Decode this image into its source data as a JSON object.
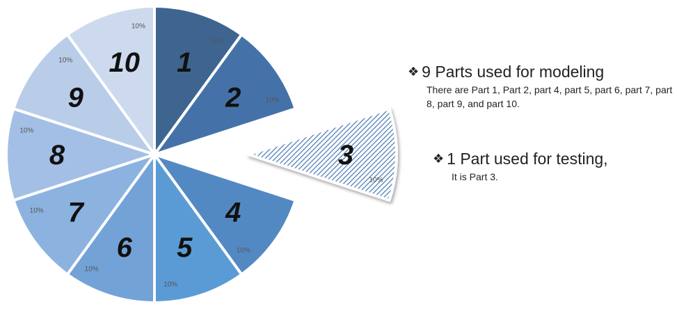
{
  "chart_data": {
    "type": "pie",
    "title": "",
    "slices": [
      {
        "label": "1",
        "value": 10,
        "value_label": "10%",
        "color": "#3e6590",
        "exploded": false
      },
      {
        "label": "2",
        "value": 10,
        "value_label": "10%",
        "color": "#4472a8",
        "exploded": false
      },
      {
        "label": "3",
        "value": 10,
        "value_label": "10%",
        "color": "#4f7fb8",
        "exploded": true,
        "pattern": "diagonal-hatch"
      },
      {
        "label": "4",
        "value": 10,
        "value_label": "10%",
        "color": "#5389c3",
        "exploded": false
      },
      {
        "label": "5",
        "value": 10,
        "value_label": "10%",
        "color": "#5b9bd5",
        "exploded": false
      },
      {
        "label": "6",
        "value": 10,
        "value_label": "10%",
        "color": "#73a2d7",
        "exploded": false
      },
      {
        "label": "7",
        "value": 10,
        "value_label": "10%",
        "color": "#8cb2e0",
        "exploded": false
      },
      {
        "label": "8",
        "value": 10,
        "value_label": "10%",
        "color": "#a3bfe5",
        "exploded": false
      },
      {
        "label": "9",
        "value": 10,
        "value_label": "10%",
        "color": "#b9cde9",
        "exploded": false
      },
      {
        "label": "10",
        "value": 10,
        "value_label": "10%",
        "color": "#cddaee",
        "exploded": false
      }
    ]
  },
  "text": {
    "modeling_glyph": "❖",
    "modeling_heading": "9 Parts used for modeling",
    "modeling_detail": "There are Part 1, Part 2, part 4, part 5, part 6, part 7, part 8, part 9, and part 10.",
    "testing_glyph": "❖",
    "testing_heading": "1 Part used for testing,",
    "testing_detail": "It is Part 3."
  }
}
